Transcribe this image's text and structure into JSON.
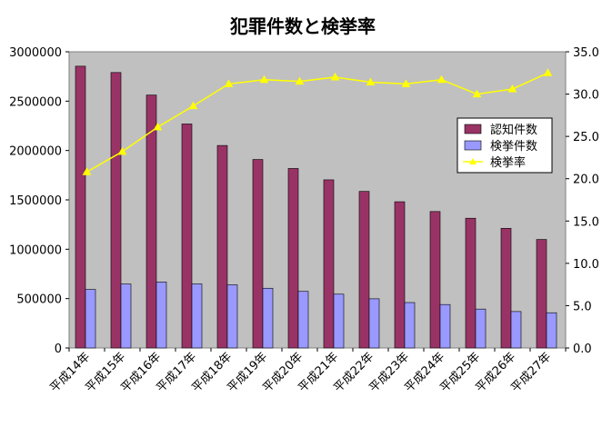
{
  "chart_data": {
    "type": "bar",
    "title": "犯罪件数と検挙率",
    "categories": [
      "平成14年",
      "平成15年",
      "平成16年",
      "平成17年",
      "平成18年",
      "平成19年",
      "平成20年",
      "平成21年",
      "平成22年",
      "平成23年",
      "平成24年",
      "平成25年",
      "平成26年",
      "平成27年"
    ],
    "y_left": {
      "ylim": [
        0,
        3000000
      ],
      "ticks": [
        "0",
        "500000",
        "1000000",
        "1500000",
        "2000000",
        "2500000",
        "3000000"
      ]
    },
    "y_right": {
      "ylim": [
        0,
        35
      ],
      "ticks": [
        "0.0",
        "5.0",
        "10.0",
        "15.0",
        "20.0",
        "25.0",
        "30.0",
        "35.0"
      ]
    },
    "series": [
      {
        "name": "認知件数",
        "type": "bar",
        "axis": "left",
        "color": "#993366",
        "values": [
          2854000,
          2790000,
          2562000,
          2269000,
          2051000,
          1909000,
          1818000,
          1703000,
          1586000,
          1481000,
          1382000,
          1314000,
          1212000,
          1099000
        ]
      },
      {
        "name": "検挙件数",
        "type": "bar",
        "axis": "left",
        "color": "#9999ff",
        "values": [
          593000,
          648000,
          668000,
          649000,
          640000,
          605000,
          573000,
          545000,
          498000,
          460000,
          440000,
          394000,
          369000,
          357000
        ]
      },
      {
        "name": "検挙率",
        "type": "line",
        "axis": "right",
        "color": "#ffff00",
        "values": [
          20.8,
          23.2,
          26.1,
          28.6,
          31.2,
          31.7,
          31.5,
          32.0,
          31.4,
          31.2,
          31.7,
          30.0,
          30.6,
          32.5
        ]
      }
    ],
    "grid": false,
    "plot_background": "#c0c0c0",
    "legend_position": "right"
  }
}
